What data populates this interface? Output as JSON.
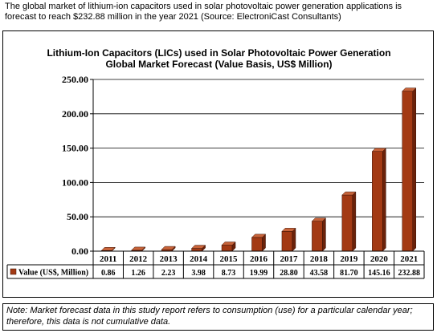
{
  "caption": "The global market of lithium-ion capacitors used in solar photovoltaic power generation applications is forecast to reach $232.88 million in the year 2021 (Source: ElectroniCast Consultants)",
  "note": "Note: Market forecast data in this study report refers to consumption (use) for a particular calendar year; therefore, this data is not cumulative data.",
  "colors": {
    "bar": "#a33a14",
    "bar_dark": "#6b220a",
    "bar_top": "#c8643a"
  },
  "chart_data": {
    "type": "bar",
    "title": "Lithium-Ion Capacitors (LICs) used in Solar Photovoltaic Power Generation",
    "subtitle": "Global Market Forecast (Value Basis, US$ Million)",
    "categories": [
      "2011",
      "2012",
      "2013",
      "2014",
      "2015",
      "2016",
      "2017",
      "2018",
      "2019",
      "2020",
      "2021"
    ],
    "series": [
      {
        "name": "Value (US$, Million)",
        "values": [
          0.86,
          1.26,
          2.23,
          3.98,
          8.73,
          19.99,
          28.8,
          43.58,
          81.7,
          145.16,
          232.88
        ]
      }
    ],
    "value_labels": [
      "0.86",
      "1.26",
      "2.23",
      "3.98",
      "8.73",
      "19.99",
      "28.80",
      "43.58",
      "81.70",
      "145.16",
      "232.88"
    ],
    "yticks": [
      "0.00",
      "50.00",
      "100.00",
      "150.00",
      "200.00",
      "250.00"
    ],
    "ylim": [
      0,
      250
    ],
    "grid": true,
    "legend": "data-table"
  }
}
